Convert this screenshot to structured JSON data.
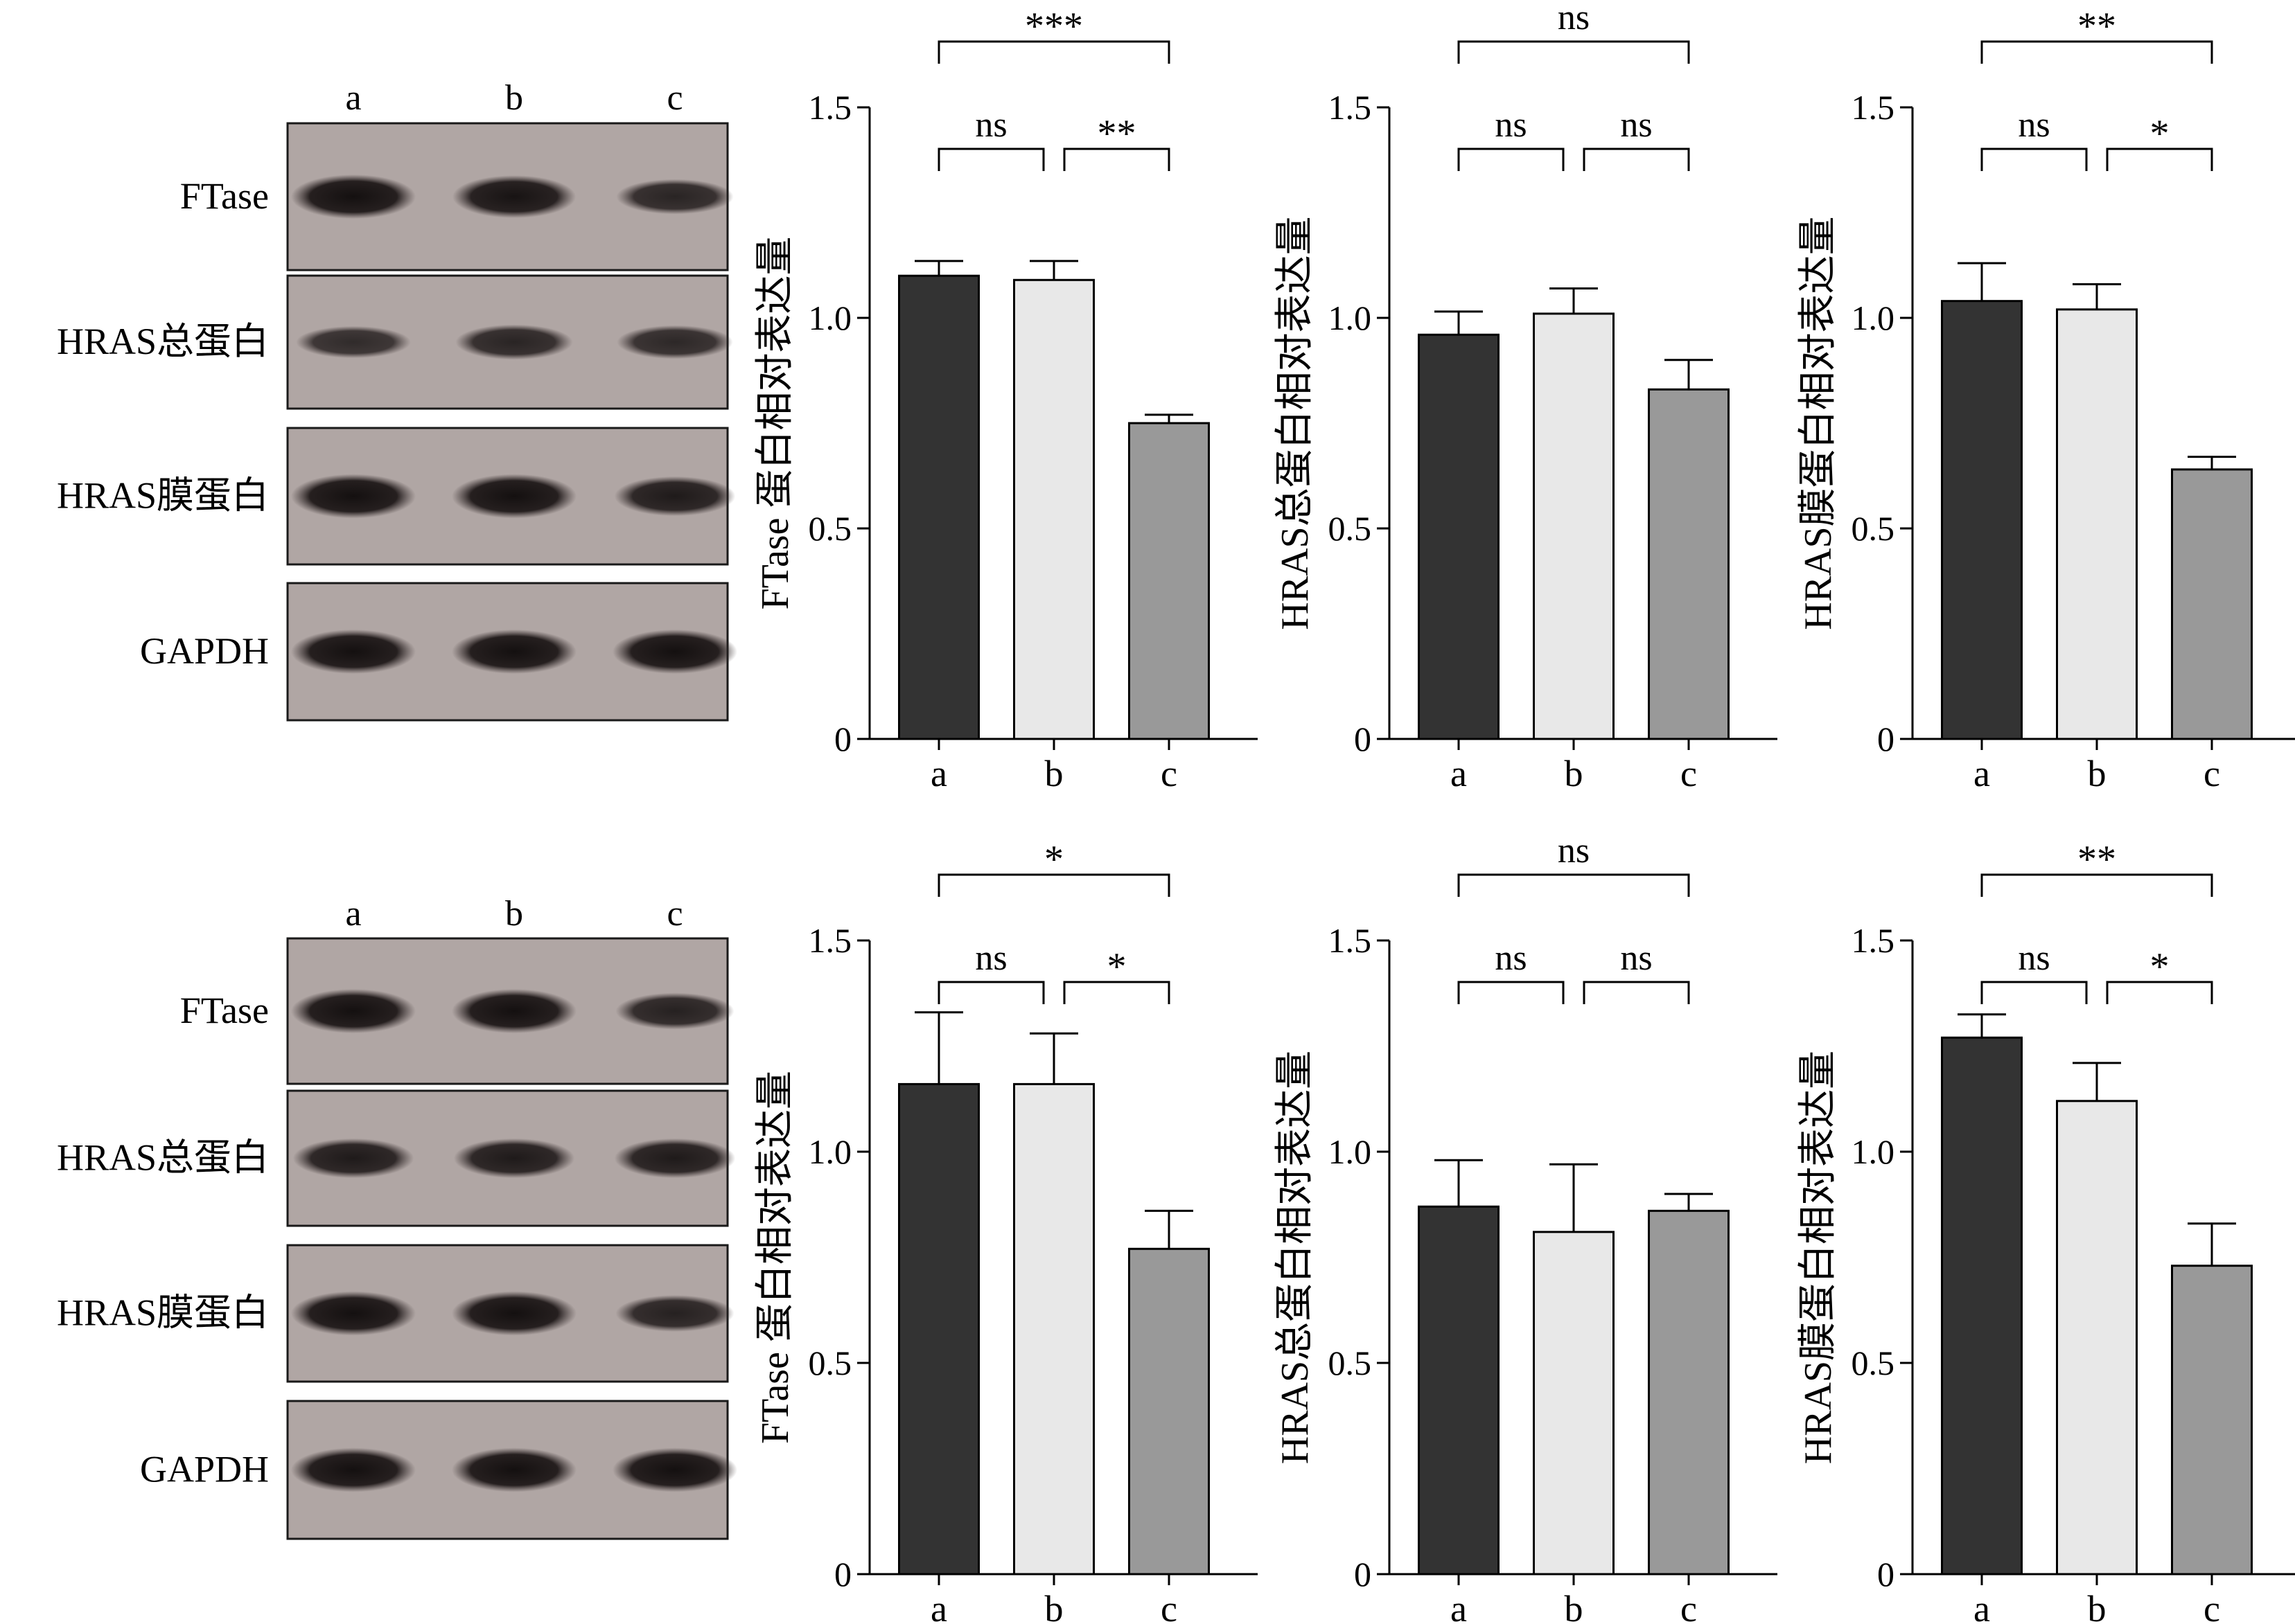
{
  "blot_panels": [
    {
      "lanes": [
        "a",
        "b",
        "c"
      ],
      "rows": [
        {
          "label": "FTase",
          "band_intensity": [
            1.0,
            0.95,
            0.7
          ]
        },
        {
          "label": "HRAS总蛋白",
          "band_intensity": [
            0.6,
            0.7,
            0.65
          ]
        },
        {
          "label": "HRAS膜蛋白",
          "band_intensity": [
            1.0,
            1.0,
            0.85
          ]
        },
        {
          "label": "GAPDH",
          "band_intensity": [
            1.0,
            1.0,
            1.0
          ]
        }
      ]
    },
    {
      "lanes": [
        "a",
        "b",
        "c"
      ],
      "rows": [
        {
          "label": "FTase",
          "band_intensity": [
            1.0,
            1.0,
            0.75
          ]
        },
        {
          "label": "HRAS总蛋白",
          "band_intensity": [
            0.85,
            0.85,
            0.85
          ]
        },
        {
          "label": "HRAS膜蛋白",
          "band_intensity": [
            1.0,
            1.0,
            0.75
          ]
        },
        {
          "label": "GAPDH",
          "band_intensity": [
            1.0,
            1.0,
            1.0
          ]
        }
      ]
    }
  ],
  "bar_colors": [
    "#333333",
    "#e8e8e8",
    "#999999"
  ],
  "chart_data": [
    {
      "type": "bar",
      "title": "",
      "ylabel": "FTase 蛋白相对表达量",
      "xlabel": "",
      "categories": [
        "a",
        "b",
        "c"
      ],
      "values": [
        1.1,
        1.09,
        0.75
      ],
      "errors": [
        0.035,
        0.045,
        0.02
      ],
      "ylim": [
        0,
        1.5
      ],
      "yticks": [
        "0",
        "0.5",
        "1.0",
        "1.5"
      ],
      "significance": [
        {
          "from": 0,
          "to": 1,
          "label": "ns"
        },
        {
          "from": 1,
          "to": 2,
          "label": "**"
        },
        {
          "from": 0,
          "to": 2,
          "label": "***"
        }
      ]
    },
    {
      "type": "bar",
      "title": "",
      "ylabel": "HRAS总蛋白相对表达量",
      "xlabel": "",
      "categories": [
        "a",
        "b",
        "c"
      ],
      "values": [
        0.96,
        1.01,
        0.83
      ],
      "errors": [
        0.055,
        0.06,
        0.07
      ],
      "ylim": [
        0,
        1.5
      ],
      "yticks": [
        "0",
        "0.5",
        "1.0",
        "1.5"
      ],
      "significance": [
        {
          "from": 0,
          "to": 1,
          "label": "ns"
        },
        {
          "from": 1,
          "to": 2,
          "label": "ns"
        },
        {
          "from": 0,
          "to": 2,
          "label": "ns"
        }
      ]
    },
    {
      "type": "bar",
      "title": "",
      "ylabel": "HRAS膜蛋白相对表达量",
      "xlabel": "",
      "categories": [
        "a",
        "b",
        "c"
      ],
      "values": [
        1.04,
        1.02,
        0.64
      ],
      "errors": [
        0.09,
        0.06,
        0.03
      ],
      "ylim": [
        0,
        1.5
      ],
      "yticks": [
        "0",
        "0.5",
        "1.0",
        "1.5"
      ],
      "significance": [
        {
          "from": 0,
          "to": 1,
          "label": "ns"
        },
        {
          "from": 1,
          "to": 2,
          "label": "*"
        },
        {
          "from": 0,
          "to": 2,
          "label": "**"
        }
      ]
    },
    {
      "type": "bar",
      "title": "",
      "ylabel": "FTase 蛋白相对表达量",
      "xlabel": "",
      "categories": [
        "a",
        "b",
        "c"
      ],
      "values": [
        1.16,
        1.16,
        0.77
      ],
      "errors": [
        0.17,
        0.12,
        0.09
      ],
      "ylim": [
        0,
        1.5
      ],
      "yticks": [
        "0",
        "0.5",
        "1.0",
        "1.5"
      ],
      "significance": [
        {
          "from": 0,
          "to": 1,
          "label": "ns"
        },
        {
          "from": 1,
          "to": 2,
          "label": "*"
        },
        {
          "from": 0,
          "to": 2,
          "label": "*"
        }
      ]
    },
    {
      "type": "bar",
      "title": "",
      "ylabel": "HRAS总蛋白相对表达量",
      "xlabel": "",
      "categories": [
        "a",
        "b",
        "c"
      ],
      "values": [
        0.87,
        0.81,
        0.86
      ],
      "errors": [
        0.11,
        0.16,
        0.04
      ],
      "ylim": [
        0,
        1.5
      ],
      "yticks": [
        "0",
        "0.5",
        "1.0",
        "1.5"
      ],
      "significance": [
        {
          "from": 0,
          "to": 1,
          "label": "ns"
        },
        {
          "from": 1,
          "to": 2,
          "label": "ns"
        },
        {
          "from": 0,
          "to": 2,
          "label": "ns"
        }
      ]
    },
    {
      "type": "bar",
      "title": "",
      "ylabel": "HRAS膜蛋白相对表达量",
      "xlabel": "",
      "categories": [
        "a",
        "b",
        "c"
      ],
      "values": [
        1.27,
        1.12,
        0.73
      ],
      "errors": [
        0.055,
        0.09,
        0.1
      ],
      "ylim": [
        0,
        1.5
      ],
      "yticks": [
        "0",
        "0.5",
        "1.0",
        "1.5"
      ],
      "significance": [
        {
          "from": 0,
          "to": 1,
          "label": "ns"
        },
        {
          "from": 1,
          "to": 2,
          "label": "*"
        },
        {
          "from": 0,
          "to": 2,
          "label": "**"
        }
      ]
    }
  ]
}
